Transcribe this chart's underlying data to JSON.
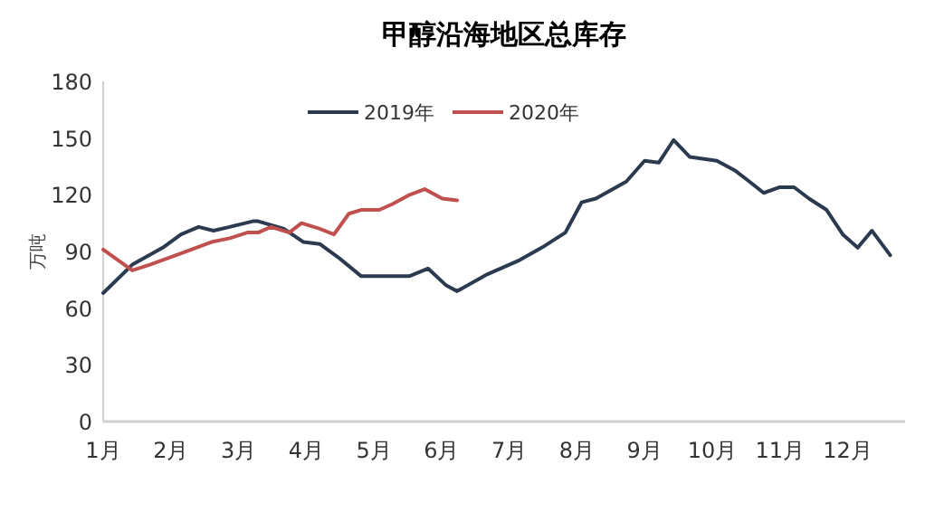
{
  "chart_data": {
    "type": "line",
    "title": "甲醇沿海地区总库存",
    "ylabel": "万吨",
    "xlim": [
      1,
      12.85
    ],
    "xticks": [
      {
        "value": 1,
        "label": "1月"
      },
      {
        "value": 2,
        "label": "2月"
      },
      {
        "value": 3,
        "label": "3月"
      },
      {
        "value": 4,
        "label": "4月"
      },
      {
        "value": 5,
        "label": "5月"
      },
      {
        "value": 6,
        "label": "6月"
      },
      {
        "value": 7,
        "label": "7月"
      },
      {
        "value": 8,
        "label": "8月"
      },
      {
        "value": 9,
        "label": "9月"
      },
      {
        "value": 10,
        "label": "10月"
      },
      {
        "value": 11,
        "label": "11月"
      },
      {
        "value": 12,
        "label": "12月"
      }
    ],
    "ylim": [
      0,
      180
    ],
    "yticks": [
      0,
      30,
      60,
      90,
      120,
      150,
      180
    ],
    "legend": "top",
    "grid": false,
    "marker": "none",
    "line_style": "solid",
    "series": [
      {
        "name": "2019年",
        "color": "#2b3a4f",
        "x": [
          1.0,
          1.43,
          1.88,
          2.15,
          2.41,
          2.63,
          2.87,
          3.21,
          3.29,
          3.67,
          3.96,
          4.2,
          4.47,
          4.81,
          5.08,
          5.53,
          5.8,
          6.07,
          6.23,
          6.68,
          7.13,
          7.48,
          7.83,
          8.07,
          8.28,
          8.73,
          9.0,
          9.21,
          9.43,
          9.67,
          10.07,
          10.33,
          10.55,
          10.76,
          11.0,
          11.21,
          11.43,
          11.69,
          11.93,
          12.15,
          12.36,
          12.63
        ],
        "values": [
          68,
          83,
          92,
          99,
          103,
          101,
          103,
          106,
          106,
          102,
          95,
          94,
          87,
          77,
          77,
          77,
          81,
          72,
          69,
          78,
          85,
          92,
          100,
          116,
          118,
          127,
          138,
          137,
          149,
          140,
          138,
          133,
          127,
          121,
          124,
          124,
          118,
          112,
          99,
          92,
          101,
          88
        ]
      },
      {
        "name": "2020年",
        "color": "#c0504d",
        "x": [
          1.0,
          1.43,
          1.69,
          2.15,
          2.6,
          2.87,
          3.13,
          3.29,
          3.48,
          3.75,
          3.93,
          4.2,
          4.41,
          4.63,
          4.81,
          5.08,
          5.27,
          5.53,
          5.75,
          6.01,
          6.23
        ],
        "values": [
          91,
          80,
          83,
          89,
          95,
          97,
          100,
          100,
          103,
          100,
          105,
          102,
          99,
          110,
          112,
          112,
          115,
          120,
          123,
          118,
          117
        ]
      }
    ]
  }
}
